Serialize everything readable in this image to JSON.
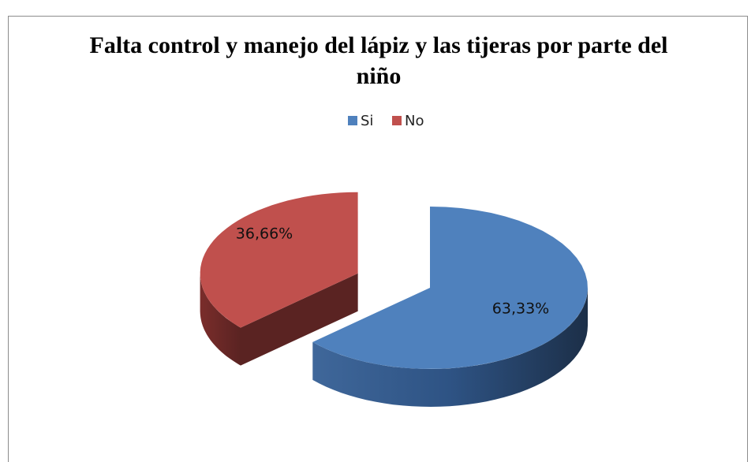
{
  "chart_data": {
    "type": "pie",
    "title": "Falta control y manejo del lápiz y las tijeras por parte del niño",
    "categories": [
      "Si",
      "No"
    ],
    "values": [
      63.33,
      36.66
    ],
    "value_labels": [
      "63,33%",
      "36,66%"
    ],
    "colors": [
      "#4f81bd",
      "#c0504d"
    ],
    "legend": "top"
  }
}
